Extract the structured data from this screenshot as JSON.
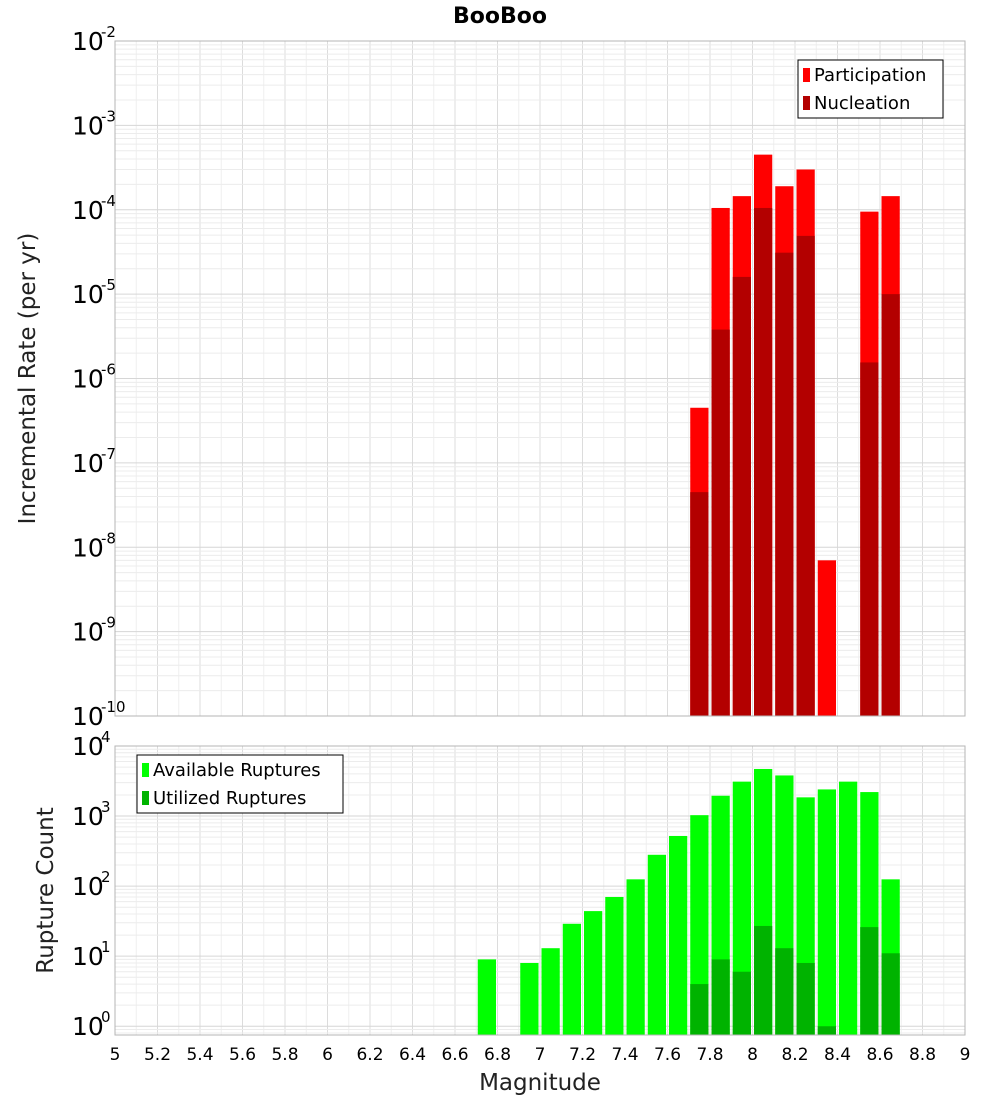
{
  "title": "BooBoo",
  "x_axis": {
    "label": "Magnitude",
    "range": [
      5,
      9
    ],
    "ticks": [
      "5",
      "5.2",
      "5.4",
      "5.6",
      "5.8",
      "6",
      "6.2",
      "6.4",
      "6.6",
      "6.8",
      "7",
      "7.2",
      "7.4",
      "7.6",
      "7.8",
      "8",
      "8.2",
      "8.4",
      "8.6",
      "8.8",
      "9"
    ]
  },
  "colors": {
    "participation": "#ff0000",
    "nucleation": "#b30000",
    "available": "#00ff00",
    "utilized": "#00b300"
  },
  "chart_data": [
    {
      "type": "bar",
      "name": "rate-panel",
      "scale": "log",
      "ylabel": "Incremental Rate (per yr)",
      "ylim": [
        1e-10,
        0.01
      ],
      "ytick_exponents": [
        "-10",
        "-9",
        "-8",
        "-7",
        "-6",
        "-5",
        "-4",
        "-3",
        "-2"
      ],
      "grid": true,
      "legend_placement": "top-right",
      "bin_width": 0.1,
      "series": [
        {
          "name": "Participation",
          "points": [
            [
              7.75,
              4.5e-07
            ],
            [
              7.85,
              0.000105
            ],
            [
              7.95,
              0.000145
            ],
            [
              8.05,
              0.00045
            ],
            [
              8.15,
              0.00019
            ],
            [
              8.25,
              0.0003
            ],
            [
              8.35,
              7e-09
            ],
            [
              8.55,
              9.5e-05
            ],
            [
              8.65,
              0.000145
            ]
          ]
        },
        {
          "name": "Nucleation",
          "points": [
            [
              7.75,
              4.5e-08
            ],
            [
              7.85,
              3.8e-06
            ],
            [
              7.95,
              1.6e-05
            ],
            [
              8.05,
              0.000105
            ],
            [
              8.15,
              3.1e-05
            ],
            [
              8.25,
              4.9e-05
            ],
            [
              8.55,
              1.55e-06
            ],
            [
              8.65,
              1e-05
            ]
          ]
        }
      ]
    },
    {
      "type": "bar",
      "name": "count-panel",
      "scale": "log",
      "ylabel": "Rupture Count",
      "ylim": [
        0.75,
        10000
      ],
      "ytick_exponents": [
        "0",
        "1",
        "2",
        "3",
        "4"
      ],
      "grid": true,
      "legend_placement": "top-left",
      "bin_width": 0.1,
      "series": [
        {
          "name": "Available Ruptures",
          "points": [
            [
              6.75,
              9
            ],
            [
              6.95,
              8
            ],
            [
              7.05,
              13
            ],
            [
              7.15,
              29
            ],
            [
              7.25,
              44
            ],
            [
              7.35,
              70
            ],
            [
              7.45,
              125
            ],
            [
              7.55,
              280
            ],
            [
              7.65,
              520
            ],
            [
              7.75,
              1030
            ],
            [
              7.85,
              1950
            ],
            [
              7.95,
              3100
            ],
            [
              8.05,
              4700
            ],
            [
              8.15,
              3800
            ],
            [
              8.25,
              1850
            ],
            [
              8.35,
              2400
            ],
            [
              8.45,
              3100
            ],
            [
              8.55,
              2200
            ],
            [
              8.65,
              125
            ]
          ]
        },
        {
          "name": "Utilized Ruptures",
          "points": [
            [
              7.75,
              4
            ],
            [
              7.85,
              9
            ],
            [
              7.95,
              6
            ],
            [
              8.05,
              27
            ],
            [
              8.15,
              13
            ],
            [
              8.25,
              8
            ],
            [
              8.35,
              1
            ],
            [
              8.55,
              26
            ],
            [
              8.65,
              11
            ]
          ]
        }
      ]
    }
  ]
}
